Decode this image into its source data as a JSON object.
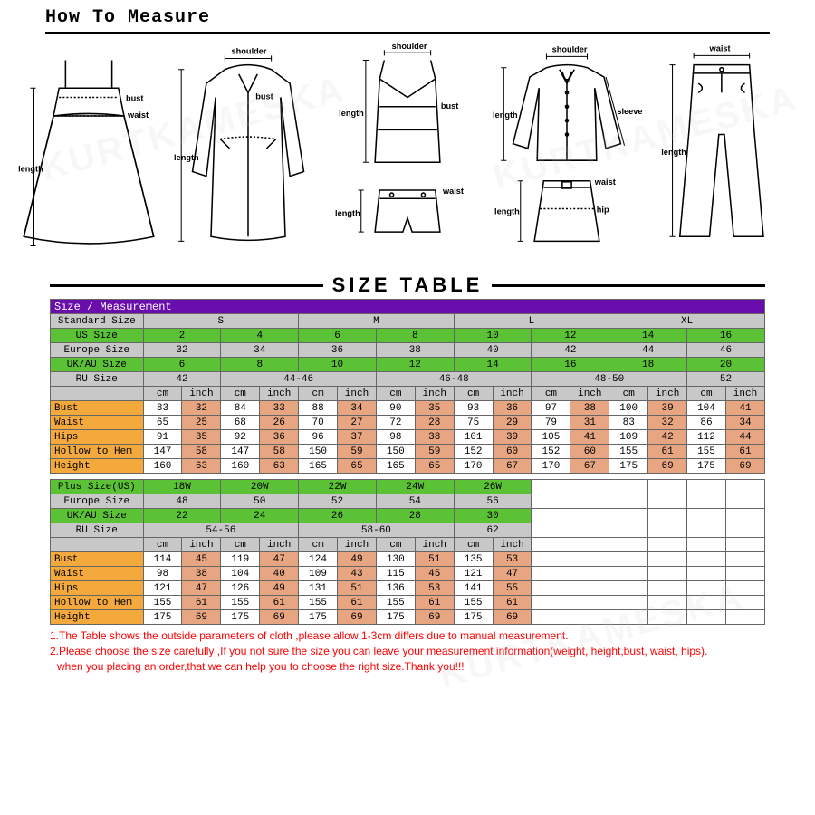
{
  "header": {
    "title": "How To Measure"
  },
  "sizeTableTitle": "SIZE TABLE",
  "table1": {
    "header": "Size / Measurement",
    "rows": [
      {
        "label": "Standard Size",
        "class": "grey",
        "span": 2,
        "cells": [
          "S",
          "M",
          "L",
          "XL"
        ]
      },
      {
        "label": "US Size",
        "class": "green",
        "span": 1,
        "cells": [
          "2",
          "4",
          "6",
          "8",
          "10",
          "12",
          "14",
          "16"
        ]
      },
      {
        "label": "Europe Size",
        "class": "grey",
        "span": 1,
        "cells": [
          "32",
          "34",
          "36",
          "38",
          "40",
          "42",
          "44",
          "46"
        ]
      },
      {
        "label": "UK/AU Size",
        "class": "green",
        "span": 1,
        "cells": [
          "6",
          "8",
          "10",
          "12",
          "14",
          "16",
          "18",
          "20"
        ]
      },
      {
        "label": "RU Size",
        "class": "grey",
        "span": 2,
        "cells": [
          "42",
          "44-46",
          "46-48",
          "48-50",
          "52"
        ],
        "ruExtra": true
      }
    ],
    "unitRow": [
      "cm",
      "inch",
      "cm",
      "inch",
      "cm",
      "inch",
      "cm",
      "inch",
      "cm",
      "inch",
      "cm",
      "inch",
      "cm",
      "inch",
      "cm",
      "inch"
    ],
    "measureRows": [
      {
        "label": "Bust",
        "vals": [
          "83",
          "32",
          "84",
          "33",
          "88",
          "34",
          "90",
          "35",
          "93",
          "36",
          "97",
          "38",
          "100",
          "39",
          "104",
          "41"
        ]
      },
      {
        "label": "Waist",
        "vals": [
          "65",
          "25",
          "68",
          "26",
          "70",
          "27",
          "72",
          "28",
          "75",
          "29",
          "79",
          "31",
          "83",
          "32",
          "86",
          "34"
        ]
      },
      {
        "label": "Hips",
        "vals": [
          "91",
          "35",
          "92",
          "36",
          "96",
          "37",
          "98",
          "38",
          "101",
          "39",
          "105",
          "41",
          "109",
          "42",
          "112",
          "44"
        ]
      },
      {
        "label": "Hollow to Hem",
        "vals": [
          "147",
          "58",
          "147",
          "58",
          "150",
          "59",
          "150",
          "59",
          "152",
          "60",
          "152",
          "60",
          "155",
          "61",
          "155",
          "61"
        ]
      },
      {
        "label": "Height",
        "vals": [
          "160",
          "63",
          "160",
          "63",
          "165",
          "65",
          "165",
          "65",
          "170",
          "67",
          "170",
          "67",
          "175",
          "69",
          "175",
          "69"
        ]
      }
    ]
  },
  "table2": {
    "rows": [
      {
        "label": "Plus Size(US)",
        "class": "green",
        "cells": [
          "18W",
          "20W",
          "22W",
          "24W",
          "26W"
        ]
      },
      {
        "label": "Europe Size",
        "class": "grey",
        "cells": [
          "48",
          "50",
          "52",
          "54",
          "56"
        ]
      },
      {
        "label": "UK/AU Size",
        "class": "green",
        "cells": [
          "22",
          "24",
          "26",
          "28",
          "30"
        ]
      },
      {
        "label": "RU Size",
        "class": "grey",
        "cells": [
          "54-56",
          "58-60",
          "62"
        ],
        "ruExtra": true
      }
    ],
    "unitRow": [
      "cm",
      "inch",
      "cm",
      "inch",
      "cm",
      "inch",
      "cm",
      "inch",
      "cm",
      "inch"
    ],
    "measureRows": [
      {
        "label": "Bust",
        "vals": [
          "114",
          "45",
          "119",
          "47",
          "124",
          "49",
          "130",
          "51",
          "135",
          "53"
        ]
      },
      {
        "label": "Waist",
        "vals": [
          "98",
          "38",
          "104",
          "40",
          "109",
          "43",
          "115",
          "45",
          "121",
          "47"
        ]
      },
      {
        "label": "Hips",
        "vals": [
          "121",
          "47",
          "126",
          "49",
          "131",
          "51",
          "136",
          "53",
          "141",
          "55"
        ]
      },
      {
        "label": "Hollow to Hem",
        "vals": [
          "155",
          "61",
          "155",
          "61",
          "155",
          "61",
          "155",
          "61",
          "155",
          "61"
        ]
      },
      {
        "label": "Height",
        "vals": [
          "175",
          "69",
          "175",
          "69",
          "175",
          "69",
          "175",
          "69",
          "175",
          "69"
        ]
      }
    ]
  },
  "notes": [
    "1.The Table shows the outside parameters of cloth ,please allow 1-3cm differs due to manual measurement.",
    "2.Please choose the size carefully ,If you not sure the size,you can leave your measurement information(weight, height,bust, waist, hips).",
    "  when you placing an order,that we can help you to choose the right size.Thank you!!!"
  ],
  "watermark": "KURTKAMESKA",
  "colors": {
    "purple": "#6a0dad",
    "grey": "#c8c8c8",
    "green": "#5bc236",
    "orange": "#f4a93c",
    "salmon": "#e8a582",
    "red": "#ff0000"
  }
}
